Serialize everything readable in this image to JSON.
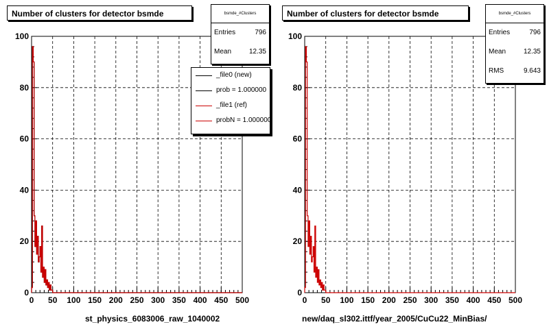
{
  "charts": [
    {
      "title": "Number of clusters for detector bsmde",
      "stats": {
        "name": "bsmde_#Clusters",
        "entries_label": "Entries",
        "entries": "796",
        "mean_label": "Mean",
        "mean": "12.35"
      },
      "legend": [
        {
          "label": "_file0 (new)",
          "color": "#000000"
        },
        {
          "label": "prob = 1.000000",
          "color": "#000000"
        },
        {
          "label": "_file1 (ref)",
          "color": "#cc0000"
        },
        {
          "label": "probN = 1.000000",
          "color": "#cc0000"
        }
      ],
      "xlabel": "st_physics_6083006_raw_1040002"
    },
    {
      "title": "Number of clusters for detector bsmde",
      "stats": {
        "name": "bsmde_#Clusters",
        "entries_label": "Entries",
        "entries": "796",
        "mean_label": "Mean",
        "mean": "12.35",
        "rms_label": "RMS",
        "rms": "9.643"
      },
      "xlabel": "new/daq_sl302.ittf/year_2005/CuCu22_MinBias/"
    }
  ],
  "chart_data": [
    {
      "type": "line",
      "x": [
        0,
        2,
        4,
        6,
        8,
        10,
        12,
        14,
        16,
        18,
        20,
        22,
        24,
        26,
        28,
        30,
        32,
        34,
        36,
        38,
        40,
        42,
        44,
        46,
        48,
        50,
        52,
        60,
        100,
        200,
        300,
        400,
        500
      ],
      "series": [
        {
          "name": "_file0 (new)",
          "color": "#000000",
          "values": [
            2,
            96,
            90,
            30,
            18,
            28,
            15,
            22,
            12,
            14,
            18,
            8,
            26,
            6,
            10,
            4,
            9,
            3,
            5,
            2,
            4,
            1,
            3,
            1,
            1,
            0,
            0,
            0,
            0,
            0,
            0,
            0,
            0
          ]
        },
        {
          "name": "_file1 (ref)",
          "color": "#cc0000",
          "values": [
            2,
            96,
            90,
            30,
            18,
            28,
            15,
            22,
            12,
            14,
            18,
            8,
            26,
            6,
            10,
            4,
            9,
            3,
            5,
            2,
            4,
            1,
            3,
            1,
            1,
            0,
            0,
            0,
            0,
            0,
            0,
            0,
            0
          ]
        }
      ],
      "xlim": [
        0,
        500
      ],
      "ylim": [
        0,
        100
      ],
      "xticks": [
        0,
        50,
        100,
        150,
        200,
        250,
        300,
        350,
        400,
        450,
        500
      ],
      "yticks": [
        0,
        20,
        40,
        60,
        80,
        100
      ],
      "grid": true
    },
    {
      "type": "line",
      "x": [
        0,
        2,
        4,
        6,
        8,
        10,
        12,
        14,
        16,
        18,
        20,
        22,
        24,
        26,
        28,
        30,
        32,
        34,
        36,
        38,
        40,
        42,
        44,
        46,
        48,
        50,
        52,
        60,
        100,
        200,
        300,
        400,
        500
      ],
      "series": [
        {
          "color": "#cc0000",
          "values": [
            2,
            96,
            90,
            30,
            18,
            28,
            15,
            22,
            12,
            14,
            18,
            8,
            26,
            6,
            10,
            4,
            9,
            3,
            5,
            2,
            4,
            1,
            3,
            1,
            1,
            0,
            0,
            0,
            0,
            0,
            0,
            0,
            0
          ]
        }
      ],
      "xlim": [
        0,
        500
      ],
      "ylim": [
        0,
        100
      ],
      "xticks": [
        0,
        50,
        100,
        150,
        200,
        250,
        300,
        350,
        400,
        450,
        500
      ],
      "yticks": [
        0,
        20,
        40,
        60,
        80,
        100
      ],
      "grid": true
    }
  ]
}
